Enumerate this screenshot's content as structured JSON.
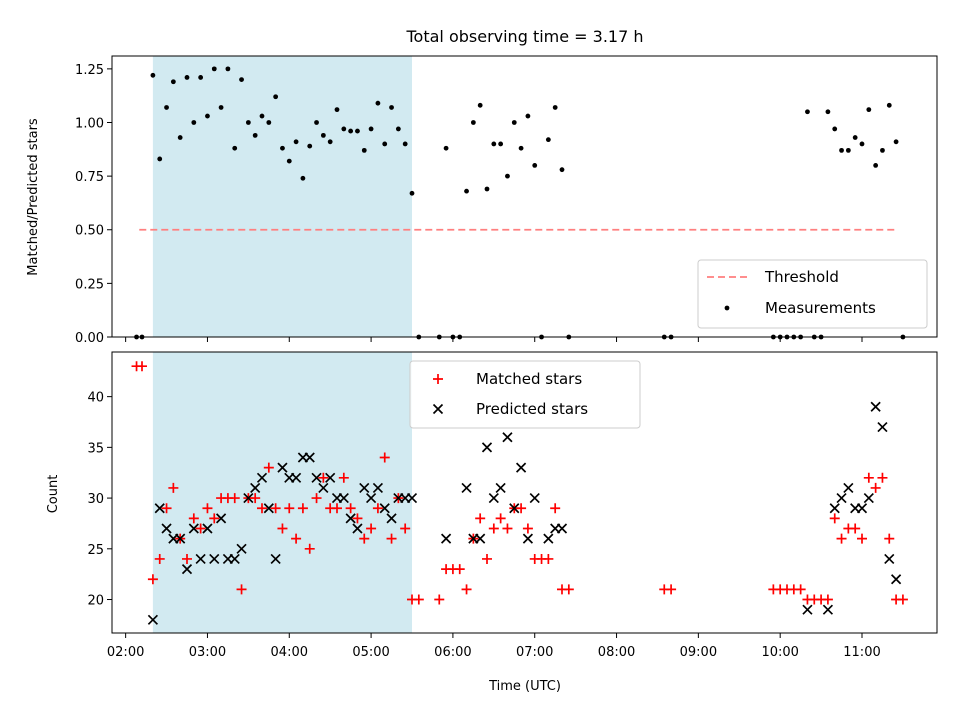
{
  "title": "Total observing time = 3.17 h",
  "colors": {
    "band": "#add8e6",
    "threshold": "#ff7f7f",
    "matched": "#ff0000",
    "predicted": "#000000",
    "measurement": "#000000"
  },
  "chart_data": [
    {
      "type": "scatter",
      "ylabel": "Matched/Predicted stars",
      "ylim": [
        0,
        1.31
      ],
      "xlim": [
        "01:50",
        "11:55"
      ],
      "yticks": [
        0.0,
        0.25,
        0.5,
        0.75,
        1.0,
        1.25
      ],
      "ytick_labels": [
        "0.00",
        "0.25",
        "0.50",
        "0.75",
        "1.00",
        "1.25"
      ],
      "shaded_span": [
        "02:20",
        "05:30"
      ],
      "legend": {
        "placement": "lower-right",
        "entries": [
          "Threshold",
          "Measurements"
        ]
      },
      "threshold": {
        "name": "Threshold",
        "y": 0.5,
        "x": [
          "02:10",
          "11:25"
        ]
      },
      "series": [
        {
          "name": "Measurements",
          "points": [
            [
              "02:08",
              0
            ],
            [
              "02:12",
              0
            ],
            [
              "02:20",
              1.22
            ],
            [
              "02:25",
              0.83
            ],
            [
              "02:30",
              1.07
            ],
            [
              "02:35",
              1.19
            ],
            [
              "02:40",
              0.93
            ],
            [
              "02:45",
              1.21
            ],
            [
              "02:50",
              1.0
            ],
            [
              "02:55",
              1.21
            ],
            [
              "03:00",
              1.03
            ],
            [
              "03:05",
              1.25
            ],
            [
              "03:10",
              1.07
            ],
            [
              "03:15",
              1.25
            ],
            [
              "03:20",
              0.88
            ],
            [
              "03:25",
              1.2
            ],
            [
              "03:30",
              1.0
            ],
            [
              "03:35",
              0.94
            ],
            [
              "03:40",
              1.03
            ],
            [
              "03:45",
              1.0
            ],
            [
              "03:50",
              1.12
            ],
            [
              "03:55",
              0.88
            ],
            [
              "04:00",
              0.82
            ],
            [
              "04:05",
              0.91
            ],
            [
              "04:10",
              0.74
            ],
            [
              "04:15",
              0.89
            ],
            [
              "04:20",
              1.0
            ],
            [
              "04:25",
              0.94
            ],
            [
              "04:30",
              0.91
            ],
            [
              "04:35",
              1.06
            ],
            [
              "04:40",
              0.97
            ],
            [
              "04:45",
              0.96
            ],
            [
              "04:50",
              0.96
            ],
            [
              "04:55",
              0.87
            ],
            [
              "05:00",
              0.97
            ],
            [
              "05:05",
              1.09
            ],
            [
              "05:10",
              0.9
            ],
            [
              "05:15",
              1.07
            ],
            [
              "05:20",
              0.97
            ],
            [
              "05:25",
              0.9
            ],
            [
              "05:30",
              0.67
            ],
            [
              "05:35",
              0
            ],
            [
              "05:50",
              0
            ],
            [
              "05:55",
              0.88
            ],
            [
              "06:00",
              0
            ],
            [
              "06:05",
              0
            ],
            [
              "06:10",
              0.68
            ],
            [
              "06:15",
              1.0
            ],
            [
              "06:20",
              1.08
            ],
            [
              "06:25",
              0.69
            ],
            [
              "06:30",
              0.9
            ],
            [
              "06:35",
              0.9
            ],
            [
              "06:40",
              0.75
            ],
            [
              "06:45",
              1.0
            ],
            [
              "06:50",
              0.88
            ],
            [
              "06:55",
              1.03
            ],
            [
              "07:00",
              0.8
            ],
            [
              "07:05",
              0
            ],
            [
              "07:10",
              0.92
            ],
            [
              "07:15",
              1.07
            ],
            [
              "07:20",
              0.78
            ],
            [
              "07:25",
              0
            ],
            [
              "08:35",
              0
            ],
            [
              "08:40",
              0
            ],
            [
              "09:55",
              0
            ],
            [
              "10:00",
              0
            ],
            [
              "10:05",
              0
            ],
            [
              "10:10",
              0
            ],
            [
              "10:15",
              0
            ],
            [
              "10:20",
              1.05
            ],
            [
              "10:25",
              0
            ],
            [
              "10:30",
              0
            ],
            [
              "10:35",
              1.05
            ],
            [
              "10:40",
              0.97
            ],
            [
              "10:45",
              0.87
            ],
            [
              "10:50",
              0.87
            ],
            [
              "10:55",
              0.93
            ],
            [
              "11:00",
              0.9
            ],
            [
              "11:05",
              1.06
            ],
            [
              "11:10",
              0.8
            ],
            [
              "11:15",
              0.87
            ],
            [
              "11:20",
              1.08
            ],
            [
              "11:25",
              0.91
            ],
            [
              "11:30",
              0
            ]
          ]
        }
      ]
    },
    {
      "type": "scatter",
      "xlabel": "Time (UTC)",
      "ylabel": "Count",
      "ylim": [
        16.7,
        44.4
      ],
      "xlim": [
        "01:50",
        "11:55"
      ],
      "yticks": [
        20,
        25,
        30,
        35,
        40
      ],
      "xticks": [
        "02:00",
        "03:00",
        "04:00",
        "05:00",
        "06:00",
        "07:00",
        "08:00",
        "09:00",
        "10:00",
        "11:00"
      ],
      "shaded_span": [
        "02:20",
        "05:30"
      ],
      "legend": {
        "placement": "upper-center",
        "entries": [
          "Matched stars",
          "Predicted stars"
        ]
      },
      "series": [
        {
          "name": "Matched stars",
          "points": [
            [
              "02:08",
              43
            ],
            [
              "02:12",
              43
            ],
            [
              "02:20",
              22
            ],
            [
              "02:25",
              24
            ],
            [
              "02:30",
              29
            ],
            [
              "02:35",
              31
            ],
            [
              "02:40",
              26
            ],
            [
              "02:45",
              24
            ],
            [
              "02:50",
              28
            ],
            [
              "02:55",
              27
            ],
            [
              "03:00",
              29
            ],
            [
              "03:05",
              28
            ],
            [
              "03:10",
              30
            ],
            [
              "03:15",
              30
            ],
            [
              "03:20",
              30
            ],
            [
              "03:25",
              21
            ],
            [
              "03:30",
              30
            ],
            [
              "03:35",
              30
            ],
            [
              "03:40",
              29
            ],
            [
              "03:45",
              33
            ],
            [
              "03:50",
              29
            ],
            [
              "03:55",
              27
            ],
            [
              "04:00",
              29
            ],
            [
              "04:05",
              26
            ],
            [
              "04:10",
              29
            ],
            [
              "04:15",
              25
            ],
            [
              "04:20",
              30
            ],
            [
              "04:25",
              32
            ],
            [
              "04:30",
              29
            ],
            [
              "04:35",
              29
            ],
            [
              "04:40",
              32
            ],
            [
              "04:45",
              29
            ],
            [
              "04:50",
              28
            ],
            [
              "04:55",
              26
            ],
            [
              "05:00",
              27
            ],
            [
              "05:05",
              29
            ],
            [
              "05:10",
              34
            ],
            [
              "05:15",
              26
            ],
            [
              "05:20",
              30
            ],
            [
              "05:25",
              27
            ],
            [
              "05:30",
              20
            ],
            [
              "05:35",
              20
            ],
            [
              "05:50",
              20
            ],
            [
              "05:55",
              23
            ],
            [
              "06:00",
              23
            ],
            [
              "06:05",
              23
            ],
            [
              "06:10",
              21
            ],
            [
              "06:15",
              26
            ],
            [
              "06:20",
              28
            ],
            [
              "06:25",
              24
            ],
            [
              "06:30",
              27
            ],
            [
              "06:35",
              28
            ],
            [
              "06:40",
              27
            ],
            [
              "06:45",
              29
            ],
            [
              "06:50",
              29
            ],
            [
              "06:55",
              27
            ],
            [
              "07:00",
              24
            ],
            [
              "07:05",
              24
            ],
            [
              "07:10",
              24
            ],
            [
              "07:15",
              29
            ],
            [
              "07:20",
              21
            ],
            [
              "07:25",
              21
            ],
            [
              "08:35",
              21
            ],
            [
              "08:40",
              21
            ],
            [
              "09:55",
              21
            ],
            [
              "10:00",
              21
            ],
            [
              "10:05",
              21
            ],
            [
              "10:10",
              21
            ],
            [
              "10:15",
              21
            ],
            [
              "10:20",
              20
            ],
            [
              "10:25",
              20
            ],
            [
              "10:30",
              20
            ],
            [
              "10:35",
              20
            ],
            [
              "10:40",
              28
            ],
            [
              "10:45",
              26
            ],
            [
              "10:50",
              27
            ],
            [
              "10:55",
              27
            ],
            [
              "11:00",
              26
            ],
            [
              "11:05",
              32
            ],
            [
              "11:10",
              31
            ],
            [
              "11:15",
              32
            ],
            [
              "11:20",
              26
            ],
            [
              "11:25",
              20
            ],
            [
              "11:30",
              20
            ]
          ]
        },
        {
          "name": "Predicted stars",
          "points": [
            [
              "02:20",
              18
            ],
            [
              "02:25",
              29
            ],
            [
              "02:30",
              27
            ],
            [
              "02:35",
              26
            ],
            [
              "02:40",
              26
            ],
            [
              "02:45",
              23
            ],
            [
              "02:50",
              27
            ],
            [
              "02:55",
              24
            ],
            [
              "03:00",
              27
            ],
            [
              "03:05",
              24
            ],
            [
              "03:10",
              28
            ],
            [
              "03:15",
              24
            ],
            [
              "03:20",
              24
            ],
            [
              "03:25",
              25
            ],
            [
              "03:30",
              30
            ],
            [
              "03:35",
              31
            ],
            [
              "03:40",
              32
            ],
            [
              "03:45",
              29
            ],
            [
              "03:50",
              24
            ],
            [
              "03:55",
              33
            ],
            [
              "04:00",
              32
            ],
            [
              "04:05",
              32
            ],
            [
              "04:10",
              34
            ],
            [
              "04:15",
              34
            ],
            [
              "04:20",
              32
            ],
            [
              "04:25",
              31
            ],
            [
              "04:30",
              32
            ],
            [
              "04:35",
              30
            ],
            [
              "04:40",
              30
            ],
            [
              "04:45",
              28
            ],
            [
              "04:50",
              27
            ],
            [
              "04:55",
              31
            ],
            [
              "05:00",
              30
            ],
            [
              "05:05",
              31
            ],
            [
              "05:10",
              29
            ],
            [
              "05:15",
              28
            ],
            [
              "05:20",
              30
            ],
            [
              "05:25",
              30
            ],
            [
              "05:30",
              30
            ],
            [
              "05:55",
              26
            ],
            [
              "06:10",
              31
            ],
            [
              "06:15",
              26
            ],
            [
              "06:20",
              26
            ],
            [
              "06:25",
              35
            ],
            [
              "06:30",
              30
            ],
            [
              "06:35",
              31
            ],
            [
              "06:40",
              36
            ],
            [
              "06:45",
              29
            ],
            [
              "06:50",
              33
            ],
            [
              "06:55",
              26
            ],
            [
              "07:00",
              30
            ],
            [
              "07:10",
              26
            ],
            [
              "07:15",
              27
            ],
            [
              "07:20",
              27
            ],
            [
              "10:20",
              19
            ],
            [
              "10:35",
              19
            ],
            [
              "10:40",
              29
            ],
            [
              "10:45",
              30
            ],
            [
              "10:50",
              31
            ],
            [
              "10:55",
              29
            ],
            [
              "11:00",
              29
            ],
            [
              "11:05",
              30
            ],
            [
              "11:10",
              39
            ],
            [
              "11:15",
              37
            ],
            [
              "11:20",
              24
            ],
            [
              "11:25",
              22
            ]
          ]
        }
      ]
    }
  ]
}
